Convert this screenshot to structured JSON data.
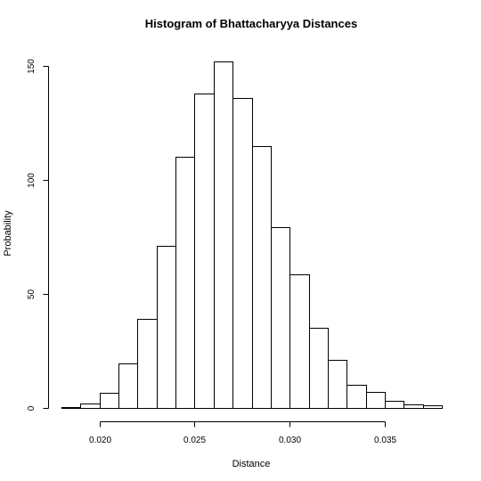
{
  "chart_data": {
    "type": "bar",
    "title": "Histogram of Bhattacharyya Distances",
    "xlabel": "Distance",
    "ylabel": "Probability",
    "bin_edges": [
      0.018,
      0.019,
      0.02,
      0.021,
      0.022,
      0.023,
      0.024,
      0.025,
      0.026,
      0.027,
      0.028,
      0.029,
      0.03,
      0.031,
      0.032,
      0.033,
      0.034,
      0.035,
      0.036,
      0.037,
      0.038
    ],
    "values": [
      0.5,
      2,
      6.5,
      19.5,
      39,
      71,
      110,
      138,
      152,
      136,
      115,
      79.5,
      58.5,
      35,
      21,
      10,
      7,
      3,
      1.5,
      1
    ],
    "xlim": [
      0.018,
      0.038
    ],
    "ylim": [
      0,
      152
    ],
    "xticks": [
      0.02,
      0.025,
      0.03,
      0.035
    ],
    "xtick_labels": [
      "0.020",
      "0.025",
      "0.030",
      "0.035"
    ],
    "yticks": [
      0,
      50,
      100,
      150
    ],
    "ytick_labels": [
      "0",
      "50",
      "100",
      "150"
    ],
    "bar_fill": "#ffffff",
    "bar_stroke": "#000000",
    "grid": false
  }
}
